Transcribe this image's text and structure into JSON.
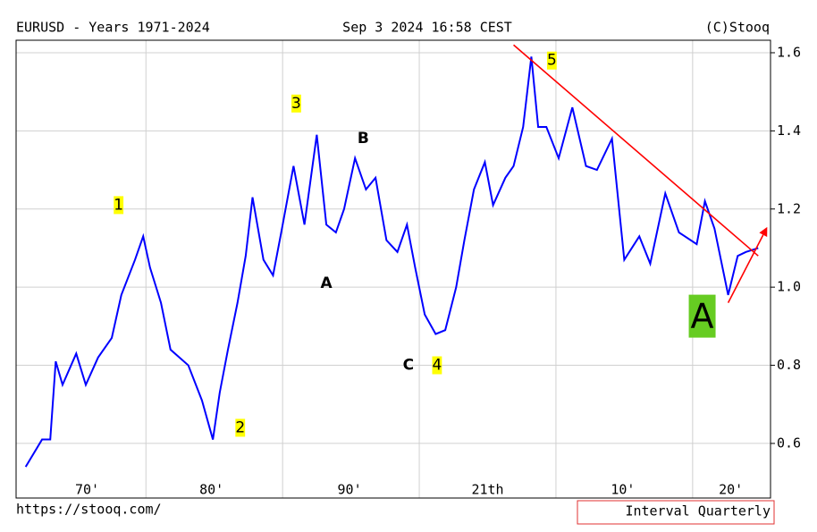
{
  "chart_data": {
    "type": "line",
    "title": "EURUSD - Years 1971-2024",
    "subtitle": "Sep 3 2024 16:58 CEST",
    "source": "(C)Stooq",
    "url": "https://stooq.com/",
    "interval": "Interval Quarterly",
    "color": "#0000ff",
    "x": [
      1971.2,
      1972.4,
      1973.0,
      1973.4,
      1973.9,
      1974.9,
      1975.6,
      1976.5,
      1977.5,
      1978.2,
      1979.2,
      1979.8,
      1980.3,
      1981.1,
      1981.8,
      1983.1,
      1984.1,
      1984.9,
      1985.4,
      1986.0,
      1986.7,
      1987.3,
      1987.8,
      1988.6,
      1989.3,
      1989.9,
      1990.8,
      1991.6,
      1992.5,
      1993.2,
      1993.9,
      1994.5,
      1995.3,
      1996.1,
      1996.8,
      1997.6,
      1998.4,
      1999.1,
      1999.7,
      2000.4,
      2001.2,
      2001.9,
      2002.7,
      2003.3,
      2004.0,
      2004.8,
      2005.4,
      2006.3,
      2006.9,
      2007.6,
      2008.2,
      2008.7,
      2009.3,
      2010.2,
      2011.2,
      2012.2,
      2013.0,
      2014.1,
      2015.0,
      2016.1,
      2016.9,
      2018.0,
      2019.0,
      2020.3,
      2020.9,
      2021.6,
      2022.6,
      2023.3,
      2023.9,
      2024.8
    ],
    "values": [
      0.54,
      0.61,
      0.61,
      0.81,
      0.75,
      0.83,
      0.75,
      0.82,
      0.87,
      0.98,
      1.07,
      1.13,
      1.05,
      0.96,
      0.84,
      0.8,
      0.71,
      0.61,
      0.73,
      0.84,
      0.96,
      1.08,
      1.23,
      1.07,
      1.03,
      1.14,
      1.31,
      1.16,
      1.39,
      1.16,
      1.14,
      1.2,
      1.33,
      1.25,
      1.28,
      1.12,
      1.09,
      1.16,
      1.05,
      0.93,
      0.88,
      0.89,
      1.0,
      1.12,
      1.25,
      1.32,
      1.21,
      1.28,
      1.31,
      1.41,
      1.59,
      1.41,
      1.41,
      1.33,
      1.46,
      1.31,
      1.3,
      1.38,
      1.07,
      1.13,
      1.06,
      1.24,
      1.14,
      1.11,
      1.22,
      1.15,
      0.98,
      1.08,
      1.09,
      1.1
    ],
    "xlim": [
      1970.5,
      2025.7
    ],
    "ylim": [
      0.506,
      1.632
    ],
    "yticks": [
      0.6,
      0.8,
      {
        "value": 1,
        "label": "1.0"
      },
      1.2,
      1.4,
      1.6
    ],
    "xticks": [
      {
        "value": 1975.7,
        "label": "70'"
      },
      {
        "value": 1984.8,
        "label": "80'"
      },
      {
        "value": 1994.9,
        "label": "90'"
      },
      {
        "value": 2005,
        "label": "21th"
      },
      {
        "value": 2014.9,
        "label": "10'"
      },
      {
        "value": 2022.8,
        "label": "20'"
      }
    ],
    "xgrid": [
      1980,
      1990,
      2000,
      2010,
      2020
    ],
    "grid": true,
    "annotations": [
      {
        "text": "1",
        "x": 1978.0,
        "y": 1.21,
        "style": "wave"
      },
      {
        "text": "2",
        "x": 1986.9,
        "y": 0.64,
        "style": "wave"
      },
      {
        "text": "3",
        "x": 1991.0,
        "y": 1.47,
        "style": "wave"
      },
      {
        "text": "4",
        "x": 2001.3,
        "y": 0.8,
        "style": "wave"
      },
      {
        "text": "5",
        "x": 2009.7,
        "y": 1.58,
        "style": "wave"
      },
      {
        "text": "A",
        "x": 1993.2,
        "y": 1.01,
        "style": "letter"
      },
      {
        "text": "B",
        "x": 1995.9,
        "y": 1.38,
        "style": "letter"
      },
      {
        "text": "C",
        "x": 1999.2,
        "y": 0.8,
        "style": "letter"
      },
      {
        "text": "A",
        "x": 2020.7,
        "y": 0.92,
        "style": "box"
      }
    ],
    "trendlines": [
      {
        "x": [
          2006.9,
          2024.8
        ],
        "y": [
          1.62,
          1.08
        ],
        "color": "#ff0000",
        "arrow": false
      },
      {
        "x": [
          2022.6,
          2025.4
        ],
        "y": [
          0.96,
          1.15
        ],
        "color": "#ff0000",
        "arrow": true
      }
    ]
  }
}
